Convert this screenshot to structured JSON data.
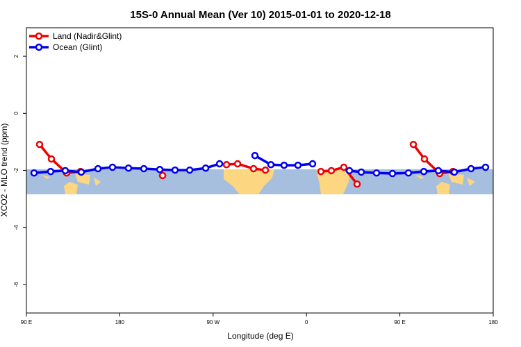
{
  "chart_data": {
    "type": "line",
    "title": "15S-0 Annual Mean (Ver 10)   2015-01-01 to 2020-12-18",
    "xlabel": "Longitude (deg E)",
    "ylabel": "XCO2 - MLO trend (ppm)",
    "xlim": [
      90,
      540
    ],
    "ylim": [
      -7,
      3
    ],
    "xticks": [
      {
        "value": 90,
        "label": "90 E"
      },
      180,
      {
        "value": 270,
        "label": "90 W"
      },
      {
        "value": 360,
        "label": "0"
      },
      {
        "value": 450,
        "label": "90 E"
      },
      {
        "value": 540,
        "label": "180"
      }
    ],
    "yticks": [
      -6,
      -4,
      -2,
      0,
      2
    ],
    "legend": "top-left",
    "series": [
      {
        "name": "Land (Nadir&Glint)",
        "color": "#ee0000",
        "x": [
          102.7,
          114.1,
          128.8,
          142.2,
          null,
          221.3,
          null,
          282.9,
          293.6,
          309.0,
          320.4,
          null,
          373.9,
          384.0,
          396.0,
          408.8,
          null,
          463.0,
          473.7,
          488.4,
          501.2
        ],
        "values": [
          -1.09,
          -1.6,
          -2.09,
          -2.04,
          null,
          -2.18,
          null,
          -1.8,
          -1.77,
          -1.94,
          -1.99,
          null,
          -2.04,
          -2.01,
          -1.89,
          -2.48,
          null,
          -1.09,
          -1.6,
          -2.11,
          -2.04
        ]
      },
      {
        "name": "Ocean (Glint)",
        "color": "#0000ee",
        "x": [
          97.4,
          113.4,
          127.5,
          142.9,
          159.0,
          173.0,
          188.4,
          203.2,
          218.6,
          233.3,
          247.4,
          262.8,
          276.2,
          null,
          310.3,
          325.7,
          338.4,
          351.8,
          365.9,
          null,
          401.4,
          412.8,
          427.5,
          442.9,
          458.3,
          473.1,
          487.1,
          502.5,
          518.6,
          532.6
        ],
        "values": [
          -2.09,
          -2.04,
          -2.01,
          -2.06,
          -1.94,
          -1.89,
          -1.92,
          -1.94,
          -1.97,
          -1.99,
          -1.99,
          -1.92,
          -1.77,
          null,
          -1.48,
          -1.8,
          -1.82,
          -1.82,
          -1.77,
          null,
          -2.01,
          -2.06,
          -2.09,
          -2.11,
          -2.09,
          -2.04,
          -2.01,
          -2.06,
          -1.94,
          -1.89
        ]
      }
    ]
  }
}
